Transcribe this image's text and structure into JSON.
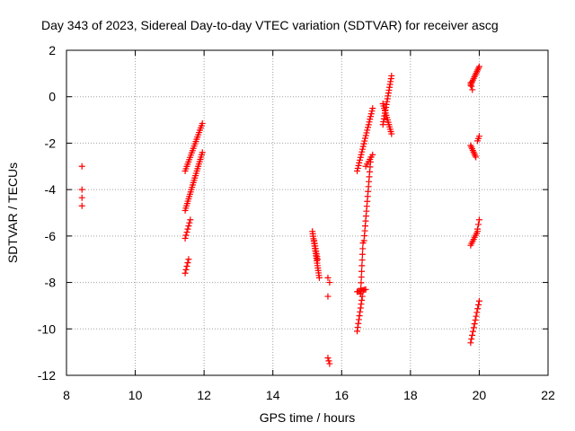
{
  "chart_data": {
    "type": "scatter",
    "title": "Day 343 of 2023, Sidereal Day-to-day VTEC variation (SDTVAR) for receiver ascg",
    "xlabel": "GPS time / hours",
    "ylabel": "SDTVAR / TECUs",
    "xlim": [
      8,
      22
    ],
    "ylim": [
      -12,
      2
    ],
    "xticks": [
      "8",
      "10",
      "12",
      "14",
      "16",
      "18",
      "20",
      "22"
    ],
    "yticks": [
      "2",
      "0",
      "-2",
      "-4",
      "-6",
      "-8",
      "-10",
      "-12"
    ],
    "grid": true,
    "marker": "plus",
    "color": "#ff0000",
    "series": [
      {
        "name": "SDTVAR",
        "segments": [
          {
            "x0": 8.45,
            "y0": -3.0,
            "x1": 8.45,
            "y1": -3.0,
            "n": 1
          },
          {
            "x0": 8.45,
            "y0": -4.0,
            "x1": 8.45,
            "y1": -4.7,
            "n": 3
          },
          {
            "x0": 11.45,
            "y0": -3.2,
            "x1": 11.95,
            "y1": -1.15,
            "n": 22
          },
          {
            "x0": 11.45,
            "y0": -4.9,
            "x1": 11.95,
            "y1": -2.4,
            "n": 26
          },
          {
            "x0": 11.45,
            "y0": -6.1,
            "x1": 11.6,
            "y1": -5.3,
            "n": 7
          },
          {
            "x0": 11.45,
            "y0": -7.6,
            "x1": 11.55,
            "y1": -7.0,
            "n": 5
          },
          {
            "x0": 15.15,
            "y0": -5.8,
            "x1": 15.35,
            "y1": -7.8,
            "n": 20
          },
          {
            "x0": 15.2,
            "y0": -6.2,
            "x1": 15.3,
            "y1": -7.0,
            "n": 8
          },
          {
            "x0": 15.6,
            "y0": -7.8,
            "x1": 15.65,
            "y1": -8.0,
            "n": 2
          },
          {
            "x0": 15.6,
            "y0": -8.6,
            "x1": 15.6,
            "y1": -8.6,
            "n": 1
          },
          {
            "x0": 15.6,
            "y0": -11.25,
            "x1": 15.65,
            "y1": -11.5,
            "n": 3
          },
          {
            "x0": 16.45,
            "y0": -3.2,
            "x1": 16.9,
            "y1": -0.5,
            "n": 24
          },
          {
            "x0": 16.7,
            "y0": -3.0,
            "x1": 16.9,
            "y1": -2.5,
            "n": 6
          },
          {
            "x0": 16.85,
            "y0": -2.6,
            "x1": 16.65,
            "y1": -6.2,
            "n": 18
          },
          {
            "x0": 16.62,
            "y0": -6.3,
            "x1": 16.55,
            "y1": -8.5,
            "n": 10
          },
          {
            "x0": 16.45,
            "y0": -8.4,
            "x1": 16.7,
            "y1": -8.3,
            "n": 8
          },
          {
            "x0": 16.45,
            "y0": -10.1,
            "x1": 16.6,
            "y1": -8.6,
            "n": 10
          },
          {
            "x0": 17.2,
            "y0": -1.2,
            "x1": 17.45,
            "y1": 0.9,
            "n": 18
          },
          {
            "x0": 17.2,
            "y0": -0.3,
            "x1": 17.45,
            "y1": -1.6,
            "n": 14
          },
          {
            "x0": 19.75,
            "y0": 0.5,
            "x1": 20.0,
            "y1": 1.3,
            "n": 12
          },
          {
            "x0": 19.75,
            "y0": 0.6,
            "x1": 19.8,
            "y1": 0.3,
            "n": 3
          },
          {
            "x0": 19.75,
            "y0": -2.1,
            "x1": 19.9,
            "y1": -2.6,
            "n": 8
          },
          {
            "x0": 19.95,
            "y0": -1.9,
            "x1": 20.0,
            "y1": -1.7,
            "n": 3
          },
          {
            "x0": 19.75,
            "y0": -6.4,
            "x1": 19.95,
            "y1": -5.8,
            "n": 8
          },
          {
            "x0": 19.95,
            "y0": -5.7,
            "x1": 20.0,
            "y1": -5.3,
            "n": 3
          },
          {
            "x0": 19.75,
            "y0": -10.6,
            "x1": 20.0,
            "y1": -8.8,
            "n": 12
          }
        ]
      }
    ]
  }
}
